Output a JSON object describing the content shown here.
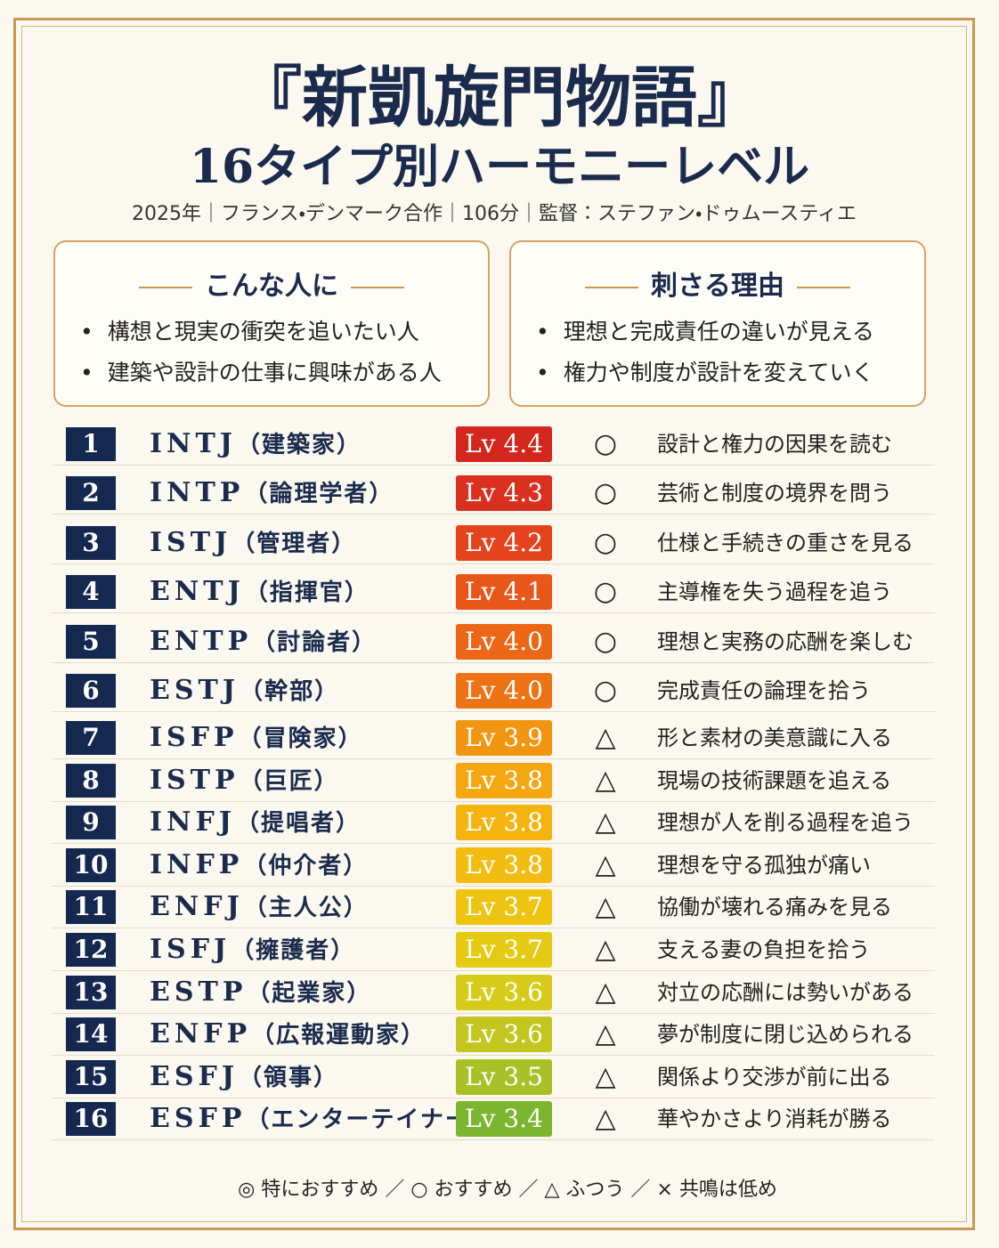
{
  "header": {
    "title": "『新凱旋門物語』",
    "subtitle": "16タイプ別ハーモニーレベル",
    "meta": "2025年｜フランス・デンマーク合作｜106分｜監督：ステファン・ドゥムースティエ"
  },
  "boxes": [
    {
      "heading": "こんな人に",
      "items": [
        "構想と現実の衝突を追いたい人",
        "建築や設計の仕事に興味がある人"
      ]
    },
    {
      "heading": "刺さる理由",
      "items": [
        "理想と完成責任の違いが見える",
        "権力や制度が設計を変えていく"
      ]
    }
  ],
  "rows": [
    {
      "rank": "1",
      "type": "INTJ",
      "role": "（建築家）",
      "level": "Lv 4.4",
      "color": "#d3271d",
      "mark": "○",
      "comment": "設計と権力の因果を読む"
    },
    {
      "rank": "2",
      "type": "INTP",
      "role": "（論理学者）",
      "level": "Lv 4.3",
      "color": "#da301f",
      "mark": "○",
      "comment": "芸術と制度の境界を問う"
    },
    {
      "rank": "3",
      "type": "ISTJ",
      "role": "（管理者）",
      "level": "Lv 4.2",
      "color": "#e4431d",
      "mark": "○",
      "comment": "仕様と手続きの重さを見る"
    },
    {
      "rank": "4",
      "type": "ENTJ",
      "role": "（指揮官）",
      "level": "Lv 4.1",
      "color": "#e8561a",
      "mark": "○",
      "comment": "主導権を失う過程を追う"
    },
    {
      "rank": "5",
      "type": "ENTP",
      "role": "（討論者）",
      "level": "Lv 4.0",
      "color": "#ec6817",
      "mark": "○",
      "comment": "理想と実務の応酬を楽しむ"
    },
    {
      "rank": "6",
      "type": "ESTJ",
      "role": "（幹部）",
      "level": "Lv 4.0",
      "color": "#ee7315",
      "mark": "○",
      "comment": "完成責任の論理を拾う"
    },
    {
      "rank": "7",
      "type": "ISFP",
      "role": "（冒険家）",
      "level": "Lv 3.9",
      "color": "#f29612",
      "mark": "△",
      "comment": "形と素材の美意識に入る"
    },
    {
      "rank": "8",
      "type": "ISTP",
      "role": "（巨匠）",
      "level": "Lv 3.8",
      "color": "#f4a711",
      "mark": "△",
      "comment": "現場の技術課題を追える"
    },
    {
      "rank": "9",
      "type": "INFJ",
      "role": "（提唱者）",
      "level": "Lv 3.8",
      "color": "#f5b30f",
      "mark": "△",
      "comment": "理想が人を削る過程を追う"
    },
    {
      "rank": "10",
      "type": "INFP",
      "role": "（仲介者）",
      "level": "Lv 3.8",
      "color": "#f3bc10",
      "mark": "△",
      "comment": "理想を守る孤独が痛い"
    },
    {
      "rank": "11",
      "type": "ENFJ",
      "role": "（主人公）",
      "level": "Lv 3.7",
      "color": "#eec411",
      "mark": "△",
      "comment": "協働が壊れる痛みを見る"
    },
    {
      "rank": "12",
      "type": "ISFJ",
      "role": "（擁護者）",
      "level": "Lv 3.7",
      "color": "#e5ca13",
      "mark": "△",
      "comment": "支える妻の負担を拾う"
    },
    {
      "rank": "13",
      "type": "ESTP",
      "role": "（起業家）",
      "level": "Lv 3.6",
      "color": "#d5cb18",
      "mark": "△",
      "comment": "対立の応酬には勢いがある"
    },
    {
      "rank": "14",
      "type": "ENFP",
      "role": "（広報運動家）",
      "level": "Lv 3.6",
      "color": "#c2c61e",
      "mark": "△",
      "comment": "夢が制度に閉じ込められる"
    },
    {
      "rank": "15",
      "type": "ESFJ",
      "role": "（領事）",
      "level": "Lv 3.5",
      "color": "#a8c126",
      "mark": "△",
      "comment": "関係より交渉が前に出る"
    },
    {
      "rank": "16",
      "type": "ESFP",
      "role": "（エンターテイナー）",
      "level": "Lv 3.4",
      "color": "#7cb52f",
      "mark": "△",
      "comment": "華やかさより消耗が勝る"
    }
  ],
  "legend": "◎ 特におすすめ ／ ○ おすすめ ／ △ ふつう ／ × 共鳴は低め"
}
